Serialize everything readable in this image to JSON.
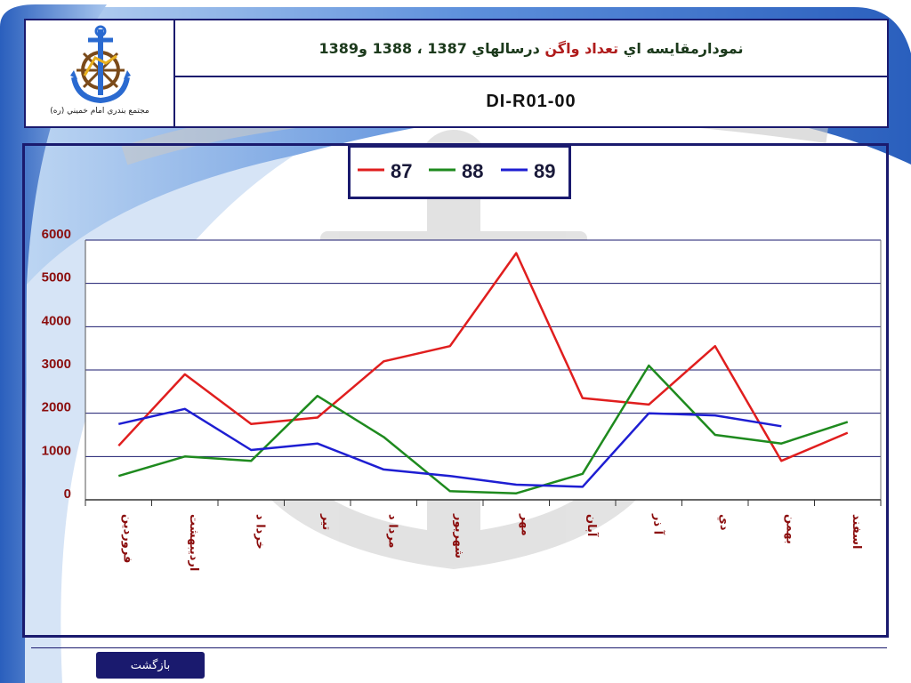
{
  "header": {
    "title_part1": "نمودارمقايسه اي ",
    "title_highlight": "تعداد واگن",
    "title_part2": " درسالهاي 1387 ، 1388 و1389",
    "code": "DI-R01-00",
    "org_name": "مجتمع بندري امام خميني (ره)"
  },
  "footer": {
    "back_label": "بازگشت"
  },
  "colors": {
    "frame": "#1a1a6e",
    "series_87": "#e01e1e",
    "series_88": "#1e8a1e",
    "series_89": "#1e1ed2",
    "tick_label": "#8b0d0d"
  },
  "chart_data": {
    "type": "line",
    "categories": [
      "فروردين",
      "ارديبهشت",
      "خرداد",
      "تير",
      "مرداد",
      "شهريور",
      "مهر",
      "آبان",
      "آذر",
      "دي",
      "بهمن",
      "اسفند"
    ],
    "category_labels": [
      "فروردين",
      "ارديبهشت",
      "خردا د",
      "تير",
      "مردا د",
      "شهريور",
      "مهر",
      "آبان",
      "آ ذر",
      "دي",
      "بهمن",
      "اسفند"
    ],
    "series": [
      {
        "name": "87",
        "color": "#e01e1e",
        "values": [
          1250,
          2900,
          1750,
          1900,
          3200,
          3550,
          5700,
          2350,
          2200,
          3550,
          900,
          1550
        ]
      },
      {
        "name": "88",
        "color": "#1e8a1e",
        "values": [
          550,
          1000,
          900,
          2400,
          1450,
          200,
          150,
          600,
          3100,
          1500,
          1300,
          1800
        ]
      },
      {
        "name": "89",
        "color": "#1e1ed2",
        "values": [
          1750,
          2100,
          1150,
          1300,
          700,
          550,
          350,
          300,
          2000,
          1950,
          1700,
          null
        ]
      }
    ],
    "y_ticks": [
      0,
      1000,
      2000,
      3000,
      4000,
      5000,
      6000
    ],
    "y_tick_labels": [
      "0",
      "1000",
      "2000",
      "3000",
      "4000",
      "5000",
      "6000"
    ],
    "ylim": [
      0,
      6000
    ],
    "grid": true,
    "legend_position": "top-center",
    "title": "",
    "xlabel": "",
    "ylabel": ""
  }
}
